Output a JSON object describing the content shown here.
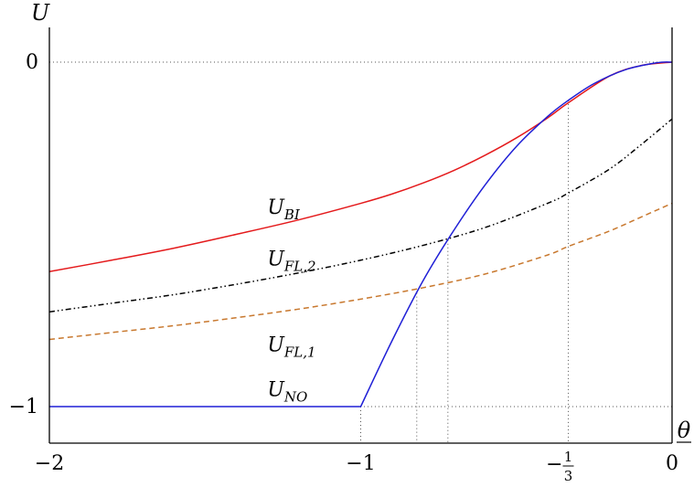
{
  "chart_data": {
    "type": "line",
    "xlabel": "θ",
    "ylabel": "U",
    "xlim": [
      -2,
      0
    ],
    "ylim": [
      -1.1,
      0.1
    ],
    "grid": false,
    "x_ticks": [
      {
        "value": -2,
        "label": "−2"
      },
      {
        "value": -1,
        "label": "−1"
      },
      {
        "value": -0.3333,
        "label": "−1/3"
      },
      {
        "value": 0,
        "label": "0"
      }
    ],
    "y_ticks": [
      {
        "value": 0,
        "label": "0"
      },
      {
        "value": -1,
        "label": "−1"
      }
    ],
    "reference_lines": {
      "horizontal": [
        0,
        -1
      ],
      "vertical": [
        -1,
        -0.82,
        -0.72,
        -0.3333
      ]
    },
    "series": [
      {
        "name": "U_BI",
        "main": "U",
        "sub": "BI",
        "color": "#e41a1c",
        "style": "solid",
        "x": [
          -2,
          -1.8,
          -1.6,
          -1.4,
          -1.2,
          -1.0,
          -0.9,
          -0.8,
          -0.7,
          -0.6,
          -0.5,
          -0.4,
          -0.3333,
          -0.2,
          -0.1,
          0
        ],
        "y": [
          -0.608,
          -0.575,
          -0.54,
          -0.5,
          -0.458,
          -0.41,
          -0.383,
          -0.351,
          -0.314,
          -0.27,
          -0.22,
          -0.162,
          -0.118,
          -0.04,
          -0.01,
          0
        ],
        "label_pos": {
          "x": -1.3,
          "y": -0.44
        }
      },
      {
        "name": "U_FL,2",
        "main": "U",
        "sub": "FL,2",
        "color": "#000000",
        "style": "dashdotdot",
        "x": [
          -2,
          -1.8,
          -1.6,
          -1.4,
          -1.2,
          -1.0,
          -0.8,
          -0.6,
          -0.4,
          -0.3333,
          -0.2,
          -0.1,
          0
        ],
        "y": [
          -0.725,
          -0.7,
          -0.675,
          -0.645,
          -0.612,
          -0.575,
          -0.532,
          -0.48,
          -0.41,
          -0.38,
          -0.31,
          -0.24,
          -0.165
        ],
        "label_pos": {
          "x": -1.3,
          "y": -0.59
        }
      },
      {
        "name": "U_FL,1",
        "main": "U",
        "sub": "FL,1",
        "color": "#c8782e",
        "style": "dashed",
        "x": [
          -2,
          -1.8,
          -1.6,
          -1.4,
          -1.2,
          -1.0,
          -0.8,
          -0.6,
          -0.4,
          -0.3333,
          -0.2,
          -0.1,
          0
        ],
        "y": [
          -0.805,
          -0.785,
          -0.765,
          -0.742,
          -0.717,
          -0.688,
          -0.655,
          -0.615,
          -0.56,
          -0.535,
          -0.49,
          -0.45,
          -0.41
        ],
        "label_pos": {
          "x": -1.3,
          "y": -0.84
        }
      },
      {
        "name": "U_NO",
        "main": "U",
        "sub": "NO",
        "color": "#1f1fd6",
        "style": "solid",
        "x": [
          -2,
          -1.0,
          -0.9,
          -0.8,
          -0.7,
          -0.6,
          -0.5,
          -0.4,
          -0.3333,
          -0.25,
          -0.15,
          -0.05,
          0
        ],
        "y": [
          -1,
          -1,
          -0.81,
          -0.635,
          -0.487,
          -0.356,
          -0.245,
          -0.158,
          -0.111,
          -0.062,
          -0.022,
          -0.002,
          0
        ],
        "label_pos": {
          "x": -1.3,
          "y": -0.97
        }
      }
    ]
  }
}
